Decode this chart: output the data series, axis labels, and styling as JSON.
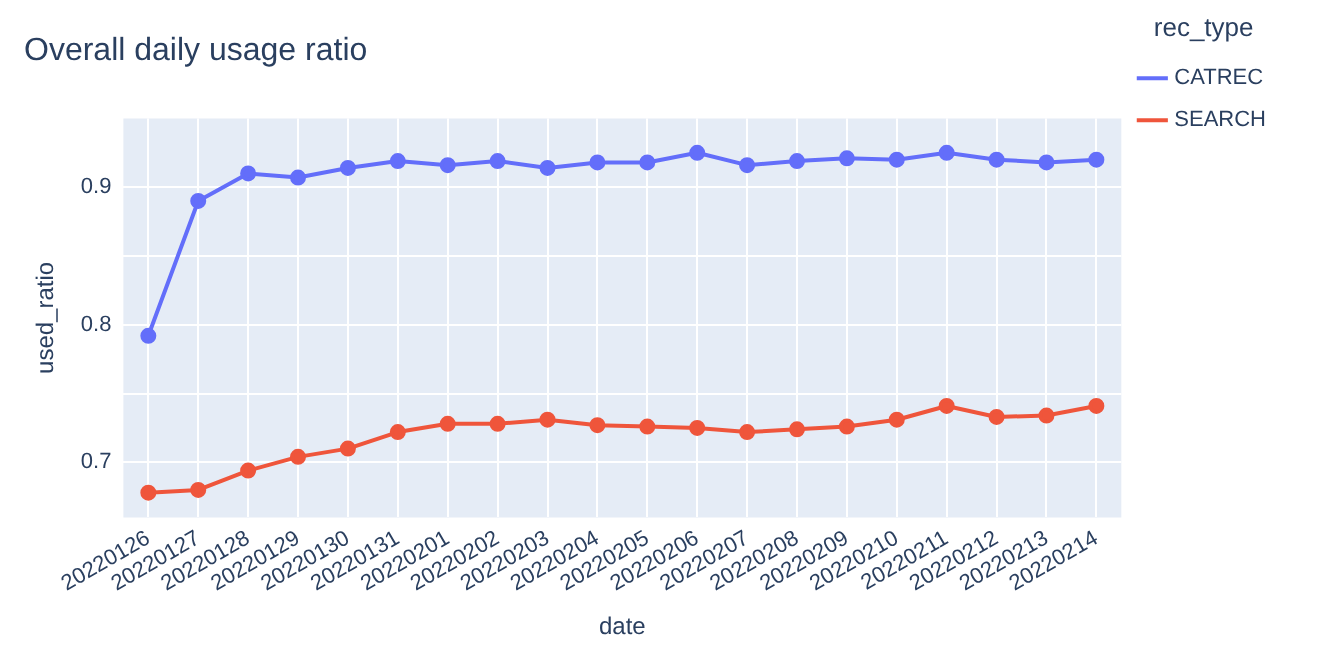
{
  "chart_data": {
    "type": "line",
    "title": "Overall daily usage ratio",
    "xlabel": "date",
    "ylabel": "used_ratio",
    "legend_title": "rec_type",
    "categories": [
      "20220126",
      "20220127",
      "20220128",
      "20220129",
      "20220130",
      "20220131",
      "20220201",
      "20220202",
      "20220203",
      "20220204",
      "20220205",
      "20220206",
      "20220207",
      "20220208",
      "20220209",
      "20220210",
      "20220211",
      "20220212",
      "20220213",
      "20220214"
    ],
    "series": [
      {
        "name": "CATREC",
        "color": "#636efa",
        "values": [
          0.792,
          0.89,
          0.91,
          0.907,
          0.914,
          0.919,
          0.916,
          0.919,
          0.914,
          0.918,
          0.918,
          0.925,
          0.916,
          0.919,
          0.921,
          0.92,
          0.925,
          0.92,
          0.918,
          0.92
        ]
      },
      {
        "name": "SEARCH",
        "color": "#ef553b",
        "values": [
          0.678,
          0.68,
          0.694,
          0.704,
          0.71,
          0.722,
          0.728,
          0.728,
          0.731,
          0.727,
          0.726,
          0.725,
          0.722,
          0.724,
          0.726,
          0.731,
          0.741,
          0.733,
          0.734,
          0.741
        ]
      }
    ],
    "ylim": [
      0.66,
      0.95
    ],
    "yticks": [
      0.7,
      {
        "value": 0.75,
        "label": null
      },
      0.8,
      {
        "value": 0.85,
        "label": null
      },
      0.9
    ],
    "grid": true,
    "legend": "top right",
    "marker": "circle",
    "line_style": "solid"
  }
}
